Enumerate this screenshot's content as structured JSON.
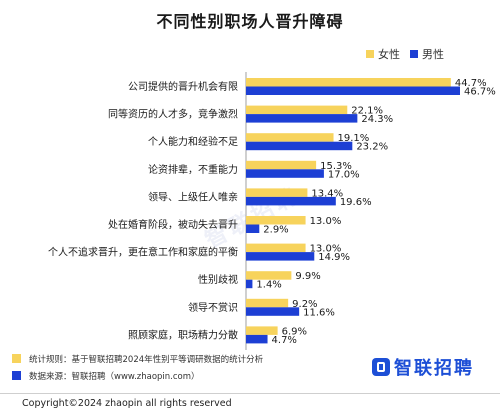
{
  "title": "不同性别职场人晋升障碍",
  "legend": {
    "female": "女性",
    "male": "男性"
  },
  "colors": {
    "female": "#f7d35c",
    "male": "#1d3fd4"
  },
  "chart_data": {
    "type": "bar",
    "orientation": "horizontal",
    "categories": [
      "公司提供的晋升机会有限",
      "同等资历的人才多，竞争激烈",
      "个人能力和经验不足",
      "论资排辈，不重能力",
      "领导、上级任人唯亲",
      "处在婚育阶段，被动失去晋升",
      "个人不追求晋升，更在意工作和家庭的平衡",
      "性别歧视",
      "领导不赏识",
      "照顾家庭，职场精力分散"
    ],
    "series": [
      {
        "name": "女性",
        "values": [
          44.7,
          22.1,
          19.1,
          15.3,
          13.4,
          13.0,
          13.0,
          9.9,
          9.2,
          6.9
        ],
        "labels": [
          "44.7%",
          "22.1%",
          "19.1%",
          "15.3%",
          "13.4%",
          "13.0%",
          "13.0%",
          "9.9%",
          "9.2%",
          "6.9%"
        ]
      },
      {
        "name": "男性",
        "values": [
          46.7,
          24.3,
          23.2,
          17.0,
          19.6,
          2.9,
          14.9,
          1.4,
          11.6,
          4.7
        ],
        "labels": [
          "46.7%",
          "24.3%",
          "23.2%",
          "17.0%",
          "19.6%",
          "2.9%",
          "14.9%",
          "1.4%",
          "11.6%",
          "4.7%"
        ]
      }
    ],
    "xlim": [
      0,
      46.7
    ],
    "grid": false,
    "legend_position": "top-right"
  },
  "footnotes": {
    "stats_rule": "统计规则：基于智联招聘2024年性别平等调研数据的统计分析",
    "source": "数据来源：智联招聘（www.zhaopin.com）"
  },
  "logo": "智联招聘",
  "copyright": "Copyright©2024 zhaopin all rights reserved"
}
